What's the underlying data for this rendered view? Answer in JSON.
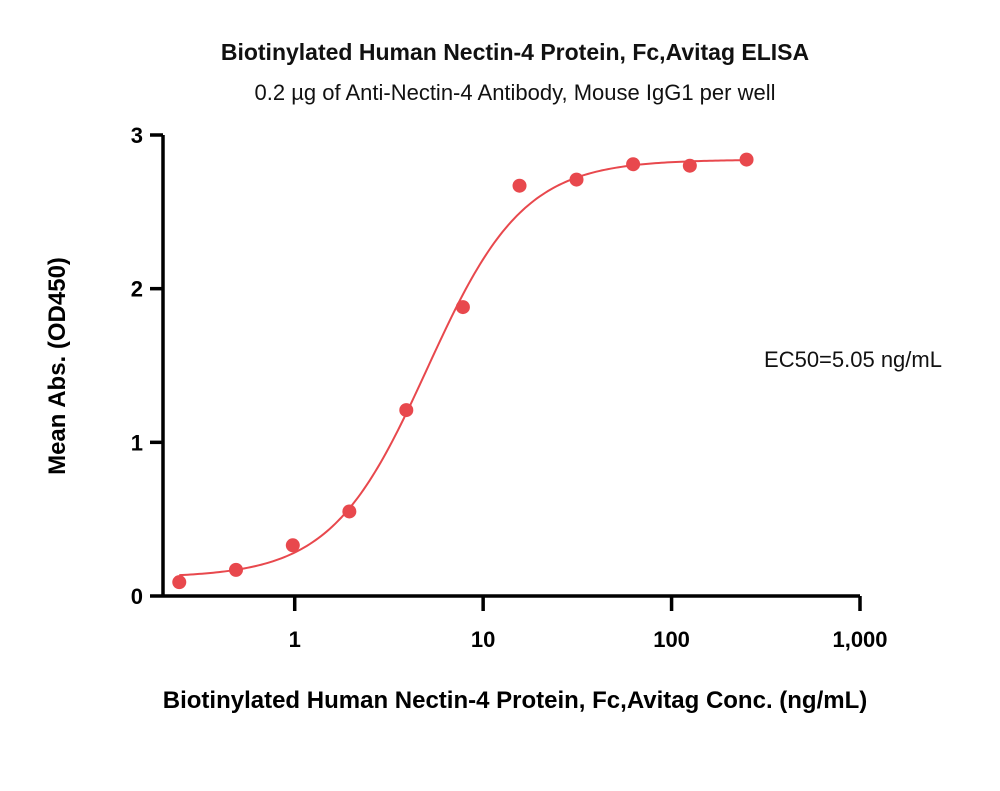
{
  "chart_data": {
    "type": "scatter",
    "title": "Biotinylated Human Nectin-4 Protein, Fc,Avitag ELISA",
    "subtitle": "0.2 µg of Anti-Nectin-4 Antibody, Mouse IgG1 per well",
    "xlabel": "Biotinylated Human Nectin-4 Protein, Fc,Avitag Conc. (ng/mL)",
    "ylabel": "Mean Abs. (OD450)",
    "x_scale": "log",
    "xlim": [
      0.2,
      1000
    ],
    "ylim": [
      0,
      3
    ],
    "x_ticks": [
      1,
      10,
      100,
      1000
    ],
    "x_tick_labels": [
      "1",
      "10",
      "100",
      "1,000"
    ],
    "y_ticks": [
      0,
      1,
      2,
      3
    ],
    "y_tick_labels": [
      "0",
      "1",
      "2",
      "3"
    ],
    "grid": false,
    "series": [
      {
        "color": "#e8484d",
        "x": [
          0.244,
          0.488,
          0.977,
          1.95,
          3.91,
          7.81,
          15.6,
          31.3,
          62.5,
          125,
          250
        ],
        "y": [
          0.09,
          0.17,
          0.33,
          0.55,
          1.21,
          1.88,
          2.67,
          2.71,
          2.81,
          2.8,
          2.84
        ]
      }
    ],
    "fit_curve": {
      "model": "4PL",
      "bottom": 0.12,
      "top": 2.84,
      "ec50": 5.05,
      "hill": 1.7,
      "color": "#e8484d"
    },
    "annotation": "EC50=5.05 ng/mL"
  }
}
